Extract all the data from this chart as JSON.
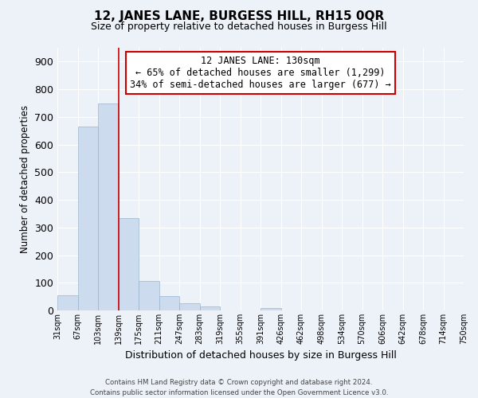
{
  "title": "12, JANES LANE, BURGESS HILL, RH15 0QR",
  "subtitle": "Size of property relative to detached houses in Burgess Hill",
  "xlabel": "Distribution of detached houses by size in Burgess Hill",
  "ylabel": "Number of detached properties",
  "bin_labels": [
    "31sqm",
    "67sqm",
    "103sqm",
    "139sqm",
    "175sqm",
    "211sqm",
    "247sqm",
    "283sqm",
    "319sqm",
    "355sqm",
    "391sqm",
    "426sqm",
    "462sqm",
    "498sqm",
    "534sqm",
    "570sqm",
    "606sqm",
    "642sqm",
    "678sqm",
    "714sqm",
    "750sqm"
  ],
  "bar_values": [
    55,
    665,
    748,
    335,
    107,
    53,
    27,
    15,
    0,
    0,
    8,
    0,
    0,
    0,
    0,
    0,
    0,
    0,
    0,
    0
  ],
  "bar_color": "#ccdcee",
  "bar_edge_color": "#9ab4cc",
  "vline_x": 3,
  "vline_color": "#cc0000",
  "ylim": [
    0,
    950
  ],
  "yticks": [
    0,
    100,
    200,
    300,
    400,
    500,
    600,
    700,
    800,
    900
  ],
  "annotation_title": "12 JANES LANE: 130sqm",
  "annotation_line1": "← 65% of detached houses are smaller (1,299)",
  "annotation_line2": "34% of semi-detached houses are larger (677) →",
  "annotation_box_color": "white",
  "annotation_box_edge": "#cc0000",
  "footer_line1": "Contains HM Land Registry data © Crown copyright and database right 2024.",
  "footer_line2": "Contains public sector information licensed under the Open Government Licence v3.0.",
  "background_color": "#edf2f9",
  "grid_color": "white",
  "title_fontsize": 11,
  "subtitle_fontsize": 9,
  "ylabel_fontsize": 8.5,
  "xlabel_fontsize": 9,
  "ytick_fontsize": 9,
  "xtick_fontsize": 7
}
